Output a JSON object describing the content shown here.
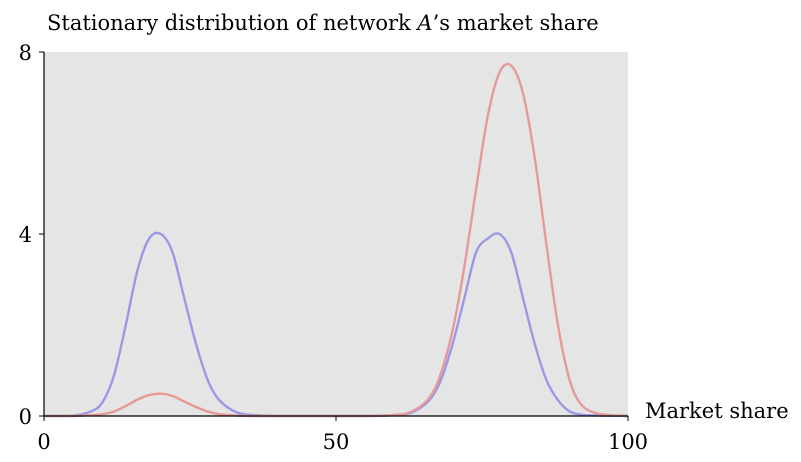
{
  "chart_data": {
    "type": "line",
    "title": "Stationary distribution of network A’s market share",
    "title_italic_fragment": "A",
    "xlabel": "Market share",
    "ylabel": "",
    "xlim": [
      0,
      100
    ],
    "ylim": [
      0,
      8
    ],
    "x_ticks": [
      0,
      50,
      100
    ],
    "x_tick_labels": [
      "0",
      "50",
      "100"
    ],
    "y_ticks": [
      0,
      4,
      8
    ],
    "y_tick_labels": [
      "0",
      "4",
      "8"
    ],
    "grid": false,
    "plot_background": "#e5e5e5",
    "series": [
      {
        "color": "#9999e6",
        "x": [
          0,
          5,
          8,
          10,
          12,
          14,
          16,
          18,
          20,
          22,
          24,
          26,
          28,
          30,
          33,
          36,
          40,
          45,
          50,
          55,
          60,
          63,
          66,
          68,
          70,
          72,
          74,
          76,
          78,
          80,
          82,
          84,
          86,
          88,
          90,
          92,
          95,
          100
        ],
        "y": [
          0,
          0.01,
          0.1,
          0.3,
          0.9,
          2.0,
          3.2,
          3.9,
          4.0,
          3.6,
          2.6,
          1.6,
          0.8,
          0.35,
          0.08,
          0.02,
          0,
          0,
          0,
          0,
          0.02,
          0.08,
          0.35,
          0.8,
          1.6,
          2.6,
          3.6,
          3.9,
          4.0,
          3.6,
          2.6,
          1.6,
          0.8,
          0.35,
          0.1,
          0.03,
          0.01,
          0
        ]
      },
      {
        "color": "#e69999",
        "x": [
          0,
          5,
          8,
          10,
          12,
          14,
          16,
          18,
          20,
          22,
          24,
          26,
          28,
          30,
          33,
          36,
          40,
          45,
          50,
          55,
          60,
          63,
          66,
          68,
          70,
          72,
          74,
          76,
          78,
          80,
          82,
          84,
          86,
          88,
          90,
          92,
          95,
          100
        ],
        "y": [
          0,
          0,
          0.02,
          0.04,
          0.1,
          0.22,
          0.36,
          0.46,
          0.49,
          0.44,
          0.32,
          0.2,
          0.1,
          0.04,
          0.01,
          0,
          0,
          0,
          0,
          0,
          0.02,
          0.1,
          0.4,
          0.95,
          1.9,
          3.3,
          5.0,
          6.6,
          7.55,
          7.7,
          7.1,
          5.7,
          3.8,
          2.0,
          0.8,
          0.25,
          0.05,
          0
        ]
      }
    ]
  }
}
